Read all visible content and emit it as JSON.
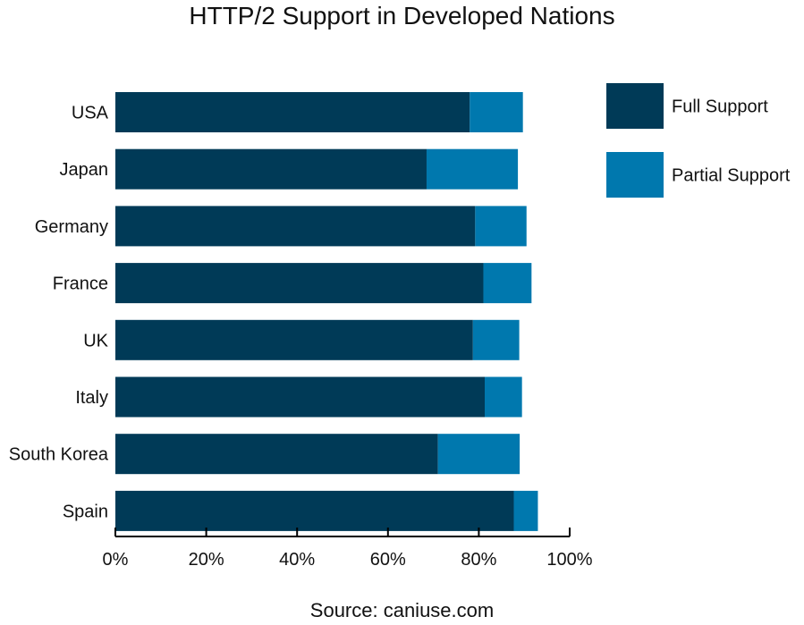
{
  "chart_data": {
    "type": "bar",
    "orientation": "horizontal",
    "stacked": true,
    "title": "HTTP/2 Support in Developed Nations",
    "source": "Source: caniuse.com",
    "categories": [
      "USA",
      "Japan",
      "Germany",
      "France",
      "UK",
      "Italy",
      "South Korea",
      "Spain"
    ],
    "series": [
      {
        "name": "Full Support",
        "color": "#003a57",
        "values": [
          78,
          68.5,
          79.2,
          81,
          78.7,
          81.3,
          71,
          87.7
        ]
      },
      {
        "name": "Partial Support",
        "color": "#0078ae",
        "values": [
          11.7,
          20.1,
          11.3,
          10.6,
          10.2,
          8.2,
          18,
          5.3
        ]
      }
    ],
    "xlim": [
      0,
      100
    ],
    "xticks": [
      "0%",
      "20%",
      "40%",
      "60%",
      "80%",
      "100%"
    ],
    "xtick_values": [
      0,
      20,
      40,
      60,
      80,
      100
    ],
    "grid": false,
    "legend_position": "top-right"
  }
}
